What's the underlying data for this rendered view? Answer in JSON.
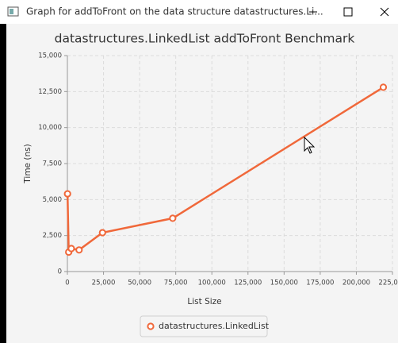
{
  "window": {
    "title": "Graph for addToFront on the data structure datastructures.Li..."
  },
  "chart_data": {
    "type": "line",
    "title": "datastructures.LinkedList addToFront Benchmark",
    "x_label": "List Size",
    "y_label": "Time (ns)",
    "x": [
      100,
      900,
      2700,
      8100,
      24300,
      72900,
      218700
    ],
    "series": [
      {
        "name": "datastructures.LinkedList",
        "color": "#f0683a",
        "values": [
          5400,
          1350,
          1600,
          1500,
          2700,
          3700,
          12800
        ]
      }
    ],
    "xlim": [
      0,
      225000
    ],
    "xticks": [
      0,
      {
        "value": 25000,
        "label": "25,000"
      },
      {
        "value": 50000,
        "label": "50,000"
      },
      {
        "value": 75000,
        "label": "75,000"
      },
      {
        "value": 100000,
        "label": "100,000"
      },
      {
        "value": 125000,
        "label": "125,000"
      },
      {
        "value": 150000,
        "label": "150,000"
      },
      {
        "value": 175000,
        "label": "175,000"
      },
      {
        "value": 200000,
        "label": "200,000"
      },
      {
        "value": 225000,
        "label": "225,000"
      }
    ],
    "ylim": [
      0,
      15000
    ],
    "yticks": [
      0,
      {
        "value": 2500,
        "label": "2,500"
      },
      {
        "value": 5000,
        "label": "5,000"
      },
      {
        "value": 7500,
        "label": "7,500"
      },
      {
        "value": 10000,
        "label": "10,000"
      },
      {
        "value": 12500,
        "label": "12,500"
      },
      {
        "value": 15000,
        "label": "15,000"
      }
    ],
    "grid": true,
    "legend": "bottom"
  }
}
